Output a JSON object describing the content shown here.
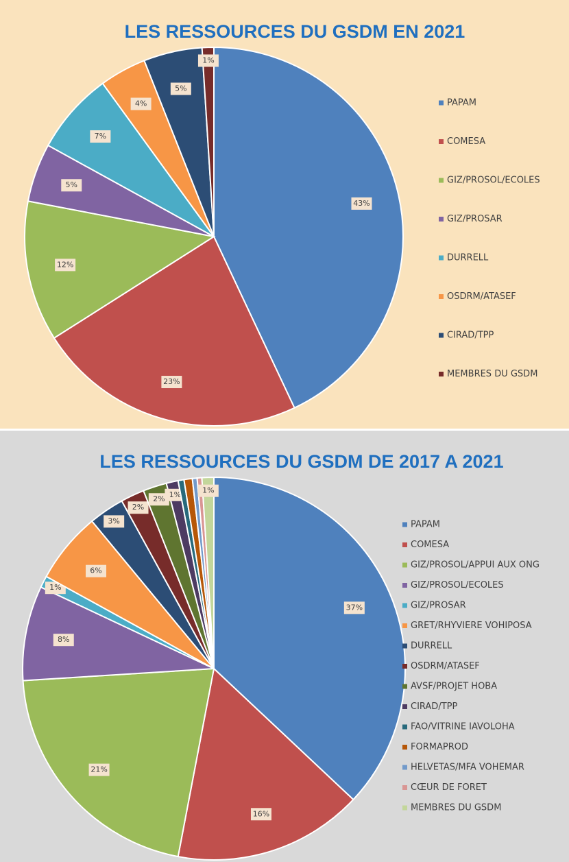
{
  "chart_data": [
    {
      "type": "pie",
      "title": "LES RESSOURCES DU GSDM EN 2021",
      "categories": [
        "PAPAM",
        "COMESA",
        "GIZ/PROSOL/ECOLES",
        "GIZ/PROSAR",
        "DURRELL",
        "OSDRM/ATASEF",
        "CIRAD/TPP",
        "MEMBRES DU GSDM"
      ],
      "values": [
        43,
        23,
        12,
        5,
        7,
        4,
        5,
        1
      ],
      "value_labels": [
        "43%",
        "23%",
        "12%",
        "5%",
        "7%",
        "4%",
        "5%",
        "1%"
      ],
      "colors": [
        "#4f81bd",
        "#c0504d",
        "#9bbb59",
        "#8064a2",
        "#4bacc6",
        "#f79646",
        "#2c4d75",
        "#772c2a"
      ],
      "legend": "right"
    },
    {
      "type": "pie",
      "title": "LES RESSOURCES DU GSDM DE 2017 A 2021",
      "categories": [
        "PAPAM",
        "COMESA",
        "GIZ/PROSOL/APPUI AUX ONG",
        "GIZ/PROSOL/ECOLES",
        "GIZ/PROSAR",
        "GRET/RHYVIERE VOHIPOSA",
        "DURRELL",
        "OSDRM/ATASEF",
        "AVSF/PROJET HOBA",
        "CIRAD/TPP",
        "FAO/VITRINE IAVOLOHA",
        "FORMAPROD",
        "HELVETAS/MFA VOHEMAR",
        "CŒUR DE FORET",
        "MEMBRES DU GSDM"
      ],
      "values": [
        37,
        16,
        21,
        8,
        1,
        6,
        3,
        2,
        2,
        1,
        0.5,
        0.7,
        0.4,
        0.4,
        1
      ],
      "value_labels": [
        "37%",
        "16%",
        "21%",
        "8%",
        "1%",
        "6%",
        "3%",
        "2%",
        "2%",
        "1%",
        null,
        null,
        null,
        null,
        "1%"
      ],
      "colors": [
        "#4f81bd",
        "#c0504d",
        "#9bbb59",
        "#8064a2",
        "#4bacc6",
        "#f79646",
        "#2c4d75",
        "#772c2a",
        "#5f7530",
        "#4d3b62",
        "#276a7c",
        "#b65708",
        "#729aca",
        "#d99694",
        "#c3d69b"
      ],
      "legend": "right"
    }
  ]
}
